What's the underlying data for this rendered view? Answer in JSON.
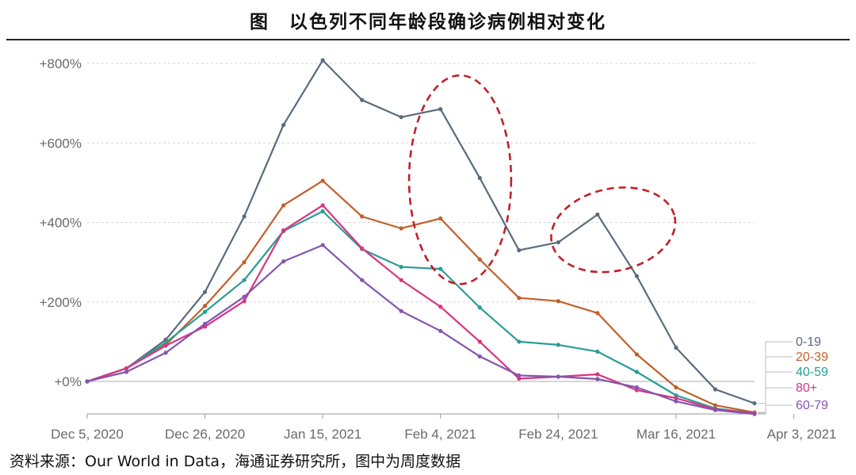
{
  "title": "图　以色列不同年龄段确诊病例相对变化",
  "source": "资料来源：Our World in Data，海通证券研究所，图中为周度数据",
  "chart_data": {
    "type": "line",
    "x_tick_labels": [
      "Dec 5, 2020",
      "Dec 26, 2020",
      "Jan 15, 2021",
      "Feb 4, 2021",
      "Feb 24, 2021",
      "Mar 16, 2021",
      "Apr 3, 2021"
    ],
    "x_tick_index": [
      0,
      3,
      6,
      9,
      12,
      15,
      18
    ],
    "y_ticks": [
      0,
      200,
      400,
      600,
      800
    ],
    "y_tick_labels": [
      "+0%",
      "+200%",
      "+400%",
      "+600%",
      "+800%"
    ],
    "ylim": [
      -100,
      850
    ],
    "grid": true,
    "legend_position": "right",
    "series": [
      {
        "name": "0-19",
        "color": "#5a6b7e",
        "values": [
          0,
          33,
          105,
          225,
          415,
          645,
          808,
          708,
          665,
          685,
          512,
          330,
          350,
          420,
          265,
          85,
          -20,
          -55
        ]
      },
      {
        "name": "20-39",
        "color": "#c0602b",
        "values": [
          0,
          33,
          92,
          190,
          300,
          443,
          505,
          415,
          385,
          410,
          307,
          210,
          202,
          172,
          68,
          -15,
          -60,
          -78
        ]
      },
      {
        "name": "40-59",
        "color": "#2a9d96",
        "values": [
          0,
          33,
          98,
          175,
          255,
          378,
          428,
          333,
          288,
          283,
          186,
          100,
          92,
          75,
          24,
          -35,
          -68,
          -80
        ]
      },
      {
        "name": "80+",
        "color": "#d9357f",
        "values": [
          0,
          33,
          90,
          138,
          202,
          380,
          443,
          335,
          255,
          188,
          100,
          7,
          12,
          18,
          -22,
          -42,
          -70,
          -80
        ]
      },
      {
        "name": "60-79",
        "color": "#8456ad",
        "values": [
          0,
          24,
          72,
          145,
          213,
          302,
          343,
          255,
          177,
          127,
          63,
          15,
          12,
          6,
          -15,
          -50,
          -72,
          -82
        ]
      }
    ],
    "annotations": [
      {
        "type": "dashed-ellipse",
        "color": "#c0202a",
        "x_range": [
          8.2,
          10.8
        ],
        "y_range": [
          245,
          770
        ]
      },
      {
        "type": "dashed-ellipse",
        "color": "#c0202a",
        "x_range": [
          11.8,
          15.0
        ],
        "y_range": [
          278,
          485
        ]
      }
    ]
  }
}
